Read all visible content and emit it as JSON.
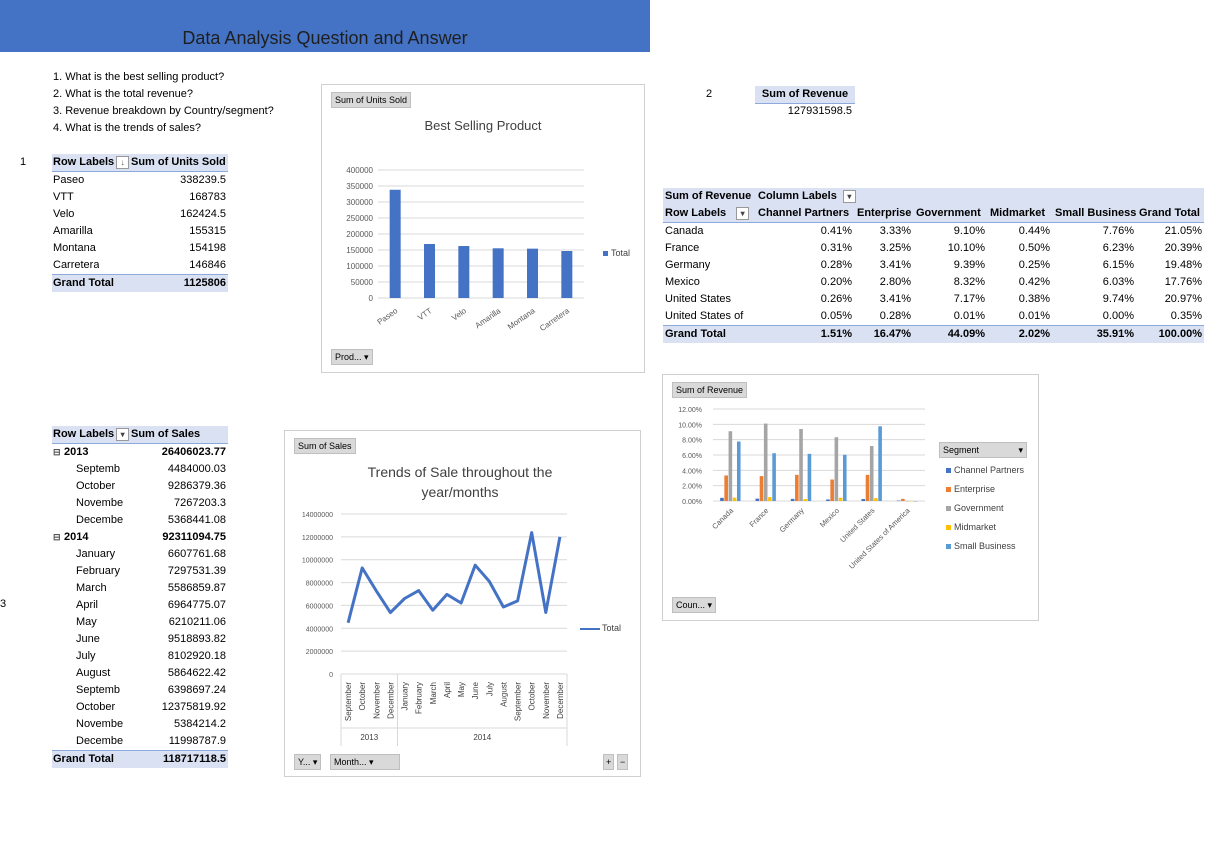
{
  "title": "Data Analysis Question and Answer",
  "questions": [
    "1. What is the best selling product?",
    "2. What is the total revenue?",
    "3. Revenue breakdown by Country/segment?",
    "4. What is the trends of sales?"
  ],
  "markers": {
    "m1": "1",
    "m2": "2",
    "m3": "3"
  },
  "units_pivot": {
    "header": [
      "Row Labels",
      "Sum of Units Sold"
    ],
    "rows": [
      [
        "Paseo",
        "338239.5"
      ],
      [
        "VTT",
        "168783"
      ],
      [
        "Velo",
        "162424.5"
      ],
      [
        "Amarilla",
        "155315"
      ],
      [
        "Montana",
        "154198"
      ],
      [
        "Carretera",
        "146846"
      ]
    ],
    "total": [
      "Grand Total",
      "1125806"
    ]
  },
  "revenue_total": {
    "label": "Sum of Revenue",
    "value": "127931598.5"
  },
  "revenue_pivot": {
    "corner": "Sum of Revenue",
    "column_labels": "Column Labels",
    "row_labels": "Row Labels",
    "columns": [
      "Channel Partners",
      "Enterprise",
      "Government",
      "Midmarket",
      "Small Business",
      "Grand Total"
    ],
    "rows": [
      [
        "Canada",
        "0.41%",
        "3.33%",
        "9.10%",
        "0.44%",
        "7.76%",
        "21.05%"
      ],
      [
        "France",
        "0.31%",
        "3.25%",
        "10.10%",
        "0.50%",
        "6.23%",
        "20.39%"
      ],
      [
        "Germany",
        "0.28%",
        "3.41%",
        "9.39%",
        "0.25%",
        "6.15%",
        "19.48%"
      ],
      [
        "Mexico",
        "0.20%",
        "2.80%",
        "8.32%",
        "0.42%",
        "6.03%",
        "17.76%"
      ],
      [
        "United States",
        "0.26%",
        "3.41%",
        "7.17%",
        "0.38%",
        "9.74%",
        "20.97%"
      ],
      [
        "United States of",
        "0.05%",
        "0.28%",
        "0.01%",
        "0.01%",
        "0.00%",
        "0.35%"
      ]
    ],
    "total": [
      "Grand Total",
      "1.51%",
      "16.47%",
      "44.09%",
      "2.02%",
      "35.91%",
      "100.00%"
    ]
  },
  "sales_pivot": {
    "header": [
      "Row Labels",
      "Sum of  Sales"
    ],
    "rows": [
      {
        "label": "2013",
        "value": "26406023.77",
        "year": true
      },
      {
        "label": "Septemb",
        "value": "4484000.03"
      },
      {
        "label": "October",
        "value": "9286379.36"
      },
      {
        "label": "Novembe",
        "value": "7267203.3"
      },
      {
        "label": "Decembe",
        "value": "5368441.08"
      },
      {
        "label": "2014",
        "value": "92311094.75",
        "year": true
      },
      {
        "label": "January",
        "value": "6607761.68"
      },
      {
        "label": "February",
        "value": "7297531.39"
      },
      {
        "label": "March",
        "value": "5586859.87"
      },
      {
        "label": "April",
        "value": "6964775.07"
      },
      {
        "label": "May",
        "value": "6210211.06"
      },
      {
        "label": "June",
        "value": "9518893.82"
      },
      {
        "label": "July",
        "value": "8102920.18"
      },
      {
        "label": "August",
        "value": "5864622.42"
      },
      {
        "label": "Septemb",
        "value": "6398697.24"
      },
      {
        "label": "October",
        "value": "12375819.92"
      },
      {
        "label": "Novembe",
        "value": "5384214.2"
      },
      {
        "label": "Decembe",
        "value": "11998787.9"
      }
    ],
    "total": [
      "Grand Total",
      "118717118.5"
    ]
  },
  "charts_ui": {
    "units_field": "Sum of Units Sold",
    "units_filter": "Prod...",
    "units_legend": "Total",
    "sales_field": "Sum of  Sales",
    "sales_filter_year": "Y...",
    "sales_filter_month": "Month...",
    "sales_legend": "Total",
    "sales_year_labels": [
      "2013",
      "2014"
    ],
    "revenue_field": "Sum of Revenue",
    "revenue_filter": "Coun...",
    "revenue_legend_title": "Segment",
    "zoom_plus": "+",
    "zoom_minus": "−"
  },
  "colors": {
    "banner": "#4472c4",
    "bar": "#4472c4",
    "line": "#4472c4",
    "channel_partners": "#4472c4",
    "enterprise": "#ed7d31",
    "government": "#a5a5a5",
    "midmarket": "#ffc000",
    "small_business": "#5b9bd5",
    "pivot_header": "#d9e1f2"
  },
  "chart_data": [
    {
      "type": "bar",
      "title": "Best Selling Product",
      "categories": [
        "Paseo",
        "VTT",
        "Velo",
        "Amarilla",
        "Montana",
        "Carretera"
      ],
      "series": [
        {
          "name": "Total",
          "values": [
            338239.5,
            168783,
            162424.5,
            155315,
            154198,
            146846
          ]
        }
      ],
      "yticks": [
        "400000",
        "350000",
        "300000",
        "250000",
        "200000",
        "150000",
        "100000",
        "50000",
        "0"
      ],
      "ylim": [
        0,
        400000
      ],
      "legend": "right"
    },
    {
      "type": "line",
      "title": "Trends of Sale throughout the year/months",
      "categories": [
        "September",
        "October",
        "November",
        "December",
        "January",
        "February",
        "March",
        "April",
        "May",
        "June",
        "July",
        "August",
        "September",
        "October",
        "November",
        "December"
      ],
      "series": [
        {
          "name": "Total",
          "values": [
            4484000.03,
            9286379.36,
            7267203.3,
            5368441.08,
            6607761.68,
            7297531.39,
            5586859.87,
            6964775.07,
            6210211.06,
            9518893.82,
            8102920.18,
            5864622.42,
            6398697.24,
            12375819.92,
            5384214.2,
            11998787.9
          ]
        }
      ],
      "yticks": [
        "14000000",
        "12000000",
        "10000000",
        "8000000",
        "6000000",
        "4000000",
        "2000000",
        "0"
      ],
      "ylim": [
        0,
        14000000
      ],
      "legend": "right"
    },
    {
      "type": "bar",
      "title": "",
      "categories": [
        "Canada",
        "France",
        "Germany",
        "Mexico",
        "United States",
        "United States of America"
      ],
      "series": [
        {
          "name": "Channel Partners",
          "values": [
            0.41,
            0.31,
            0.28,
            0.2,
            0.26,
            0.05
          ]
        },
        {
          "name": "Enterprise",
          "values": [
            3.33,
            3.25,
            3.41,
            2.8,
            3.41,
            0.28
          ]
        },
        {
          "name": "Government",
          "values": [
            9.1,
            10.1,
            9.39,
            8.32,
            7.17,
            0.01
          ]
        },
        {
          "name": "Midmarket",
          "values": [
            0.44,
            0.5,
            0.25,
            0.42,
            0.38,
            0.01
          ]
        },
        {
          "name": "Small Business",
          "values": [
            7.76,
            6.23,
            6.15,
            6.03,
            9.74,
            0.0
          ]
        }
      ],
      "yticks": [
        "12.00%",
        "10.00%",
        "8.00%",
        "6.00%",
        "4.00%",
        "2.00%",
        "0.00%"
      ],
      "ylim": [
        0,
        12
      ],
      "legend": "right"
    }
  ]
}
